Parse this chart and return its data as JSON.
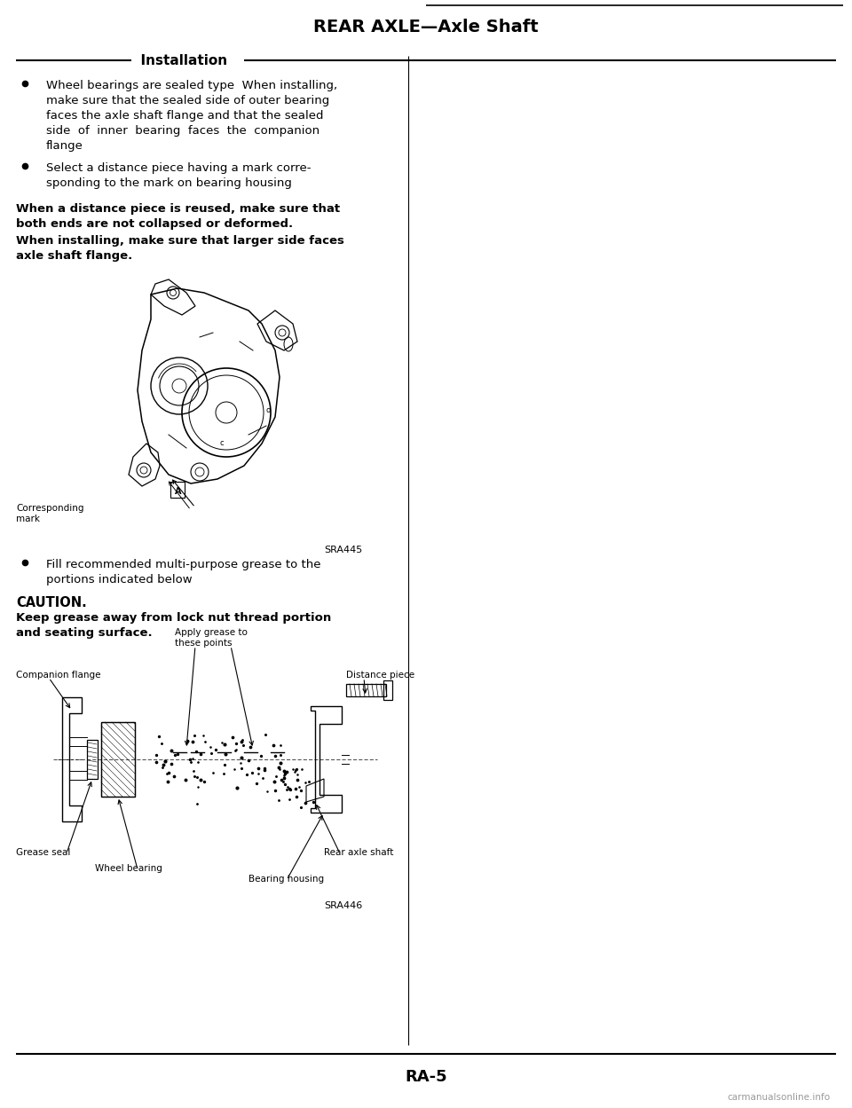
{
  "title": "REAR AXLE—Axle Shaft",
  "section": "Installation",
  "page_number": "RA-5",
  "watermark": "carmanualsonline.info",
  "bg_color": "#ffffff",
  "text_color": "#000000",
  "bullet1_lines": [
    "Wheel bearings are sealed type  When installing,",
    "make sure that the sealed side of outer bearing",
    "faces the axle shaft flange and that the sealed",
    "side  of  inner  bearing  faces  the  companion",
    "flange"
  ],
  "bullet2_lines": [
    "Select a distance piece having a mark corre-",
    "sponding to the mark on bearing housing"
  ],
  "bold_para1_line1": "When a distance piece is reused, make sure that",
  "bold_para1_line2": "both ends are not collapsed or deformed.",
  "bold_para2_line1": "When installing, make sure that larger side faces",
  "bold_para2_line2": "axle shaft flange.",
  "caution_title": "CAUTION.",
  "caution_line1": "Keep grease away from lock nut thread portion",
  "caution_line2": "and seating surface.",
  "bullet3_line1": "Fill recommended multi-purpose grease to the",
  "bullet3_line2": "portions indicated below",
  "diagram1_label": "SRA445",
  "diagram2_label": "SRA446",
  "corr_mark_line1": "Corresponding",
  "corr_mark_line2": "mark",
  "companion_flange": "Companion flange",
  "apply_grease_line1": "Apply grease to",
  "apply_grease_line2": "these points",
  "distance_piece_lbl": "Distance piece",
  "grease_seal_lbl": "Grease seal",
  "wheel_bearing_lbl": "Wheel bearing",
  "bearing_housing_lbl": "Bearing housing",
  "rear_axle_shaft_lbl": "Rear axle shaft"
}
